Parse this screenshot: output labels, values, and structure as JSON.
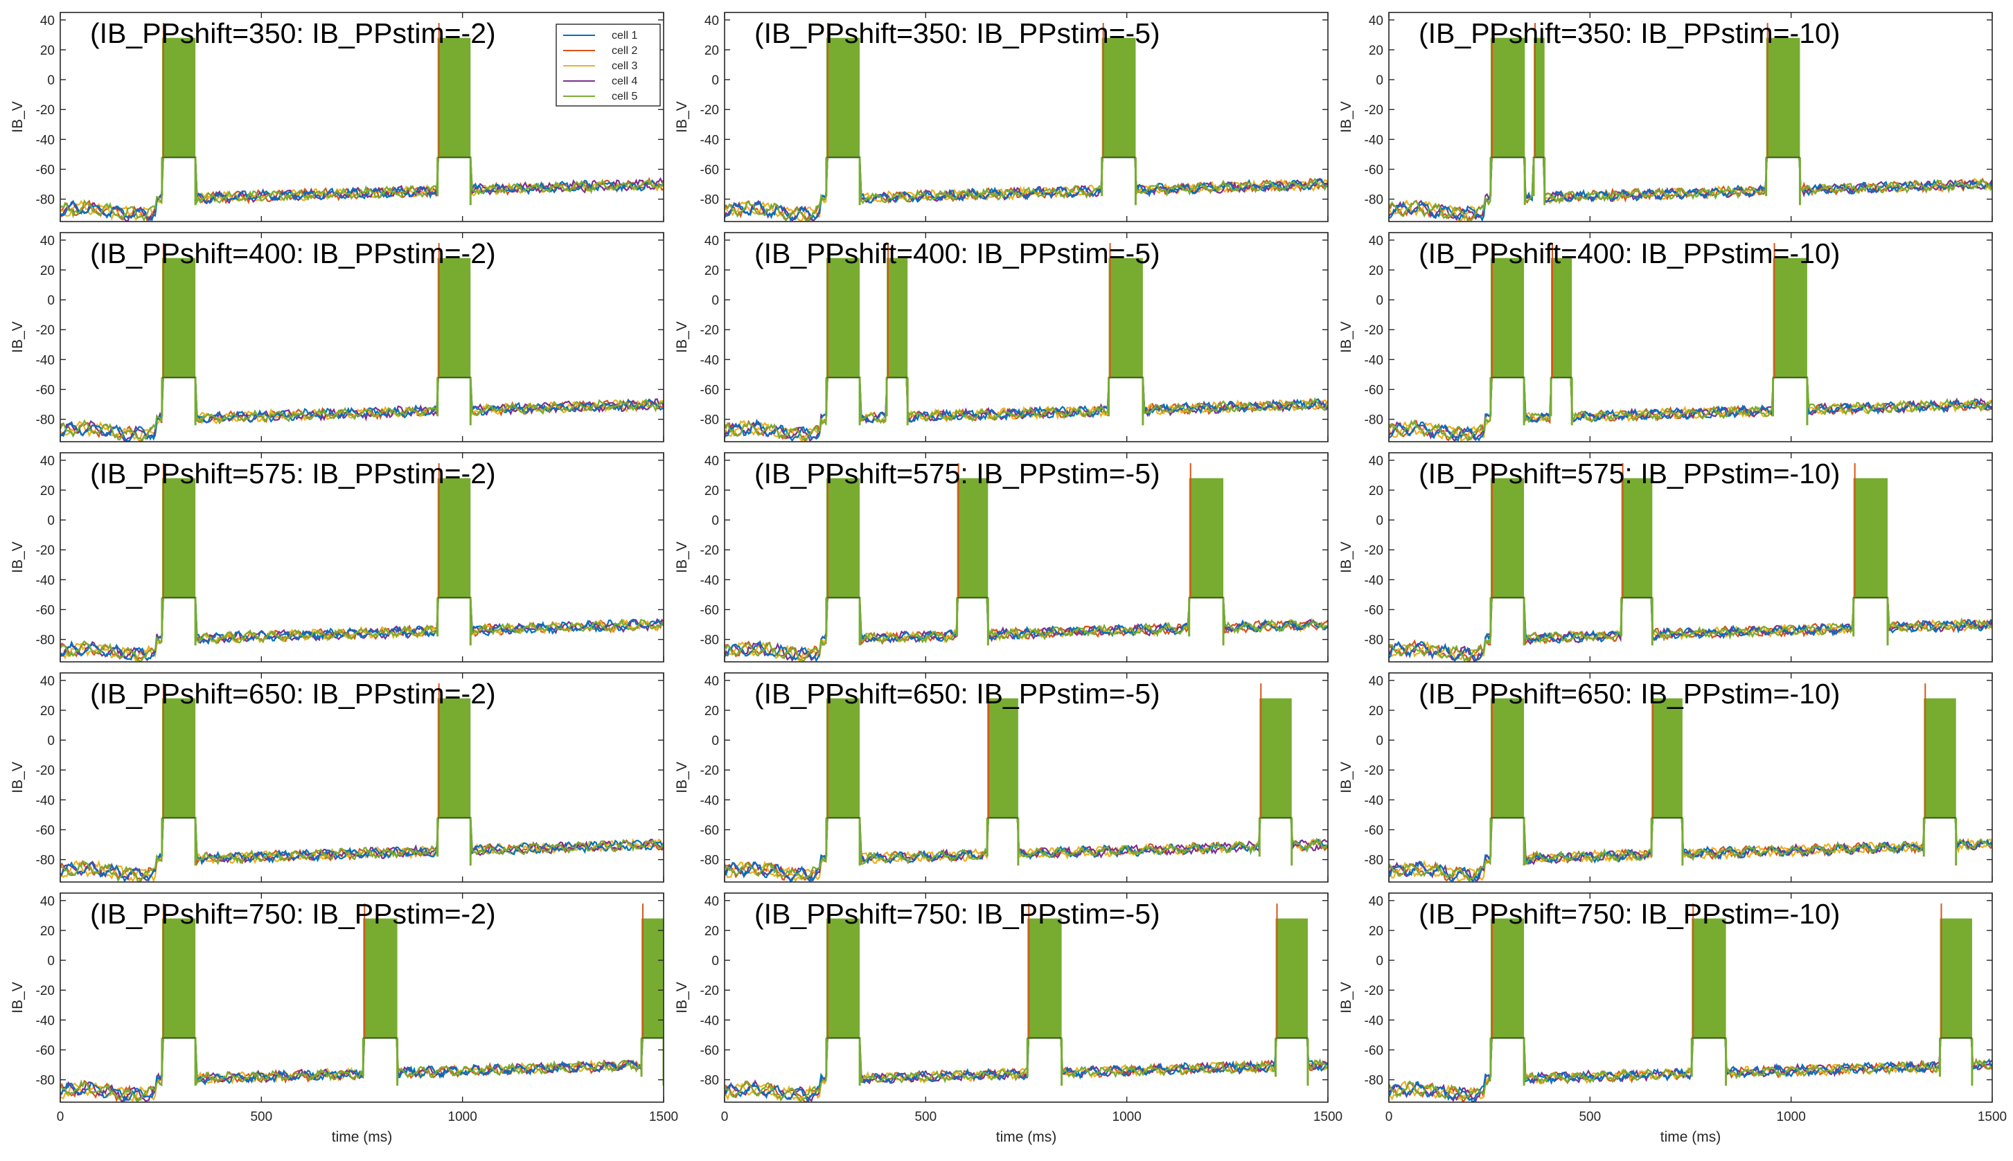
{
  "chart_data": {
    "type": "line",
    "xlim": [
      0,
      1500
    ],
    "ylim": [
      -95,
      45
    ],
    "x_ticks": [
      "0",
      "500",
      "1000",
      "1500"
    ],
    "y_ticks": [
      "40",
      "20",
      "0",
      "-20",
      "-40",
      "-60",
      "-80"
    ],
    "ylabel": "IB_V",
    "xlabel": "time (ms)",
    "grid": false,
    "legend": {
      "placement": "top-right",
      "entries": [
        {
          "name": "cell 1",
          "color": "#0072bd"
        },
        {
          "name": "cell 2",
          "color": "#d95319"
        },
        {
          "name": "cell 3",
          "color": "#edb120"
        },
        {
          "name": "cell 4",
          "color": "#7e2f8e"
        },
        {
          "name": "cell 5",
          "color": "#77ac30"
        }
      ]
    },
    "panels": [
      {
        "title": "(IB_PPshift=350: IB_PPstim=-2)",
        "bursts": [
          [
            253,
            336
          ],
          [
            938,
            1020
          ]
        ]
      },
      {
        "title": "(IB_PPshift=350: IB_PPstim=-5)",
        "bursts": [
          [
            253,
            336
          ],
          [
            938,
            1022
          ]
        ]
      },
      {
        "title": "(IB_PPshift=350: IB_PPstim=-10)",
        "bursts": [
          [
            253,
            338
          ],
          [
            360,
            387
          ],
          [
            938,
            1022
          ]
        ]
      },
      {
        "title": "(IB_PPshift=400: IB_PPstim=-2)",
        "bursts": [
          [
            253,
            336
          ],
          [
            938,
            1020
          ]
        ]
      },
      {
        "title": "(IB_PPshift=400: IB_PPstim=-5)",
        "bursts": [
          [
            253,
            336
          ],
          [
            403,
            455
          ],
          [
            955,
            1040
          ]
        ]
      },
      {
        "title": "(IB_PPshift=400: IB_PPstim=-10)",
        "bursts": [
          [
            253,
            336
          ],
          [
            403,
            455
          ],
          [
            955,
            1040
          ]
        ]
      },
      {
        "title": "(IB_PPshift=575: IB_PPstim=-2)",
        "bursts": [
          [
            253,
            336
          ],
          [
            938,
            1020
          ]
        ]
      },
      {
        "title": "(IB_PPshift=575: IB_PPstim=-5)",
        "bursts": [
          [
            253,
            336
          ],
          [
            578,
            655
          ],
          [
            1155,
            1240
          ]
        ]
      },
      {
        "title": "(IB_PPshift=575: IB_PPstim=-10)",
        "bursts": [
          [
            253,
            336
          ],
          [
            578,
            655
          ],
          [
            1155,
            1240
          ]
        ]
      },
      {
        "title": "(IB_PPshift=650: IB_PPstim=-2)",
        "bursts": [
          [
            253,
            336
          ],
          [
            938,
            1020
          ]
        ]
      },
      {
        "title": "(IB_PPshift=650: IB_PPstim=-5)",
        "bursts": [
          [
            253,
            336
          ],
          [
            653,
            730
          ],
          [
            1330,
            1410
          ]
        ]
      },
      {
        "title": "(IB_PPshift=650: IB_PPstim=-10)",
        "bursts": [
          [
            253,
            336
          ],
          [
            653,
            730
          ],
          [
            1330,
            1410
          ]
        ]
      },
      {
        "title": "(IB_PPshift=750: IB_PPstim=-2)",
        "bursts": [
          [
            253,
            336
          ],
          [
            753,
            838
          ],
          [
            1445,
            1500
          ]
        ]
      },
      {
        "title": "(IB_PPshift=750: IB_PPstim=-5)",
        "bursts": [
          [
            253,
            336
          ],
          [
            753,
            838
          ],
          [
            1370,
            1450
          ]
        ]
      },
      {
        "title": "(IB_PPshift=750: IB_PPstim=-10)",
        "bursts": [
          [
            253,
            336
          ],
          [
            753,
            838
          ],
          [
            1370,
            1450
          ]
        ]
      }
    ]
  }
}
